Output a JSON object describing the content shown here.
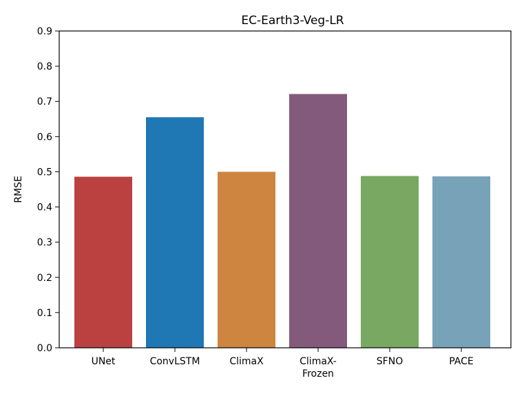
{
  "chart_data": {
    "type": "bar",
    "title": "EC-Earth3-Veg-LR",
    "xlabel": "",
    "ylabel": "RMSE",
    "ylim": [
      0,
      0.9
    ],
    "yticks": [
      0.0,
      0.1,
      0.2,
      0.3,
      0.4,
      0.5,
      0.6,
      0.7,
      0.8,
      0.9
    ],
    "ytick_labels": [
      "0.0",
      "0.1",
      "0.2",
      "0.3",
      "0.4",
      "0.5",
      "0.6",
      "0.7",
      "0.8",
      "0.9"
    ],
    "grid": false,
    "categories": [
      "UNet",
      "ConvLSTM",
      "ClimaX",
      "ClimaX-\nFrozen",
      "SFNO",
      "PACE"
    ],
    "values": [
      0.486,
      0.655,
      0.5,
      0.721,
      0.488,
      0.487
    ],
    "colors": [
      "#bb4141",
      "#1f77b4",
      "#cd8540",
      "#845a7c",
      "#78a862",
      "#78a2b8"
    ]
  }
}
